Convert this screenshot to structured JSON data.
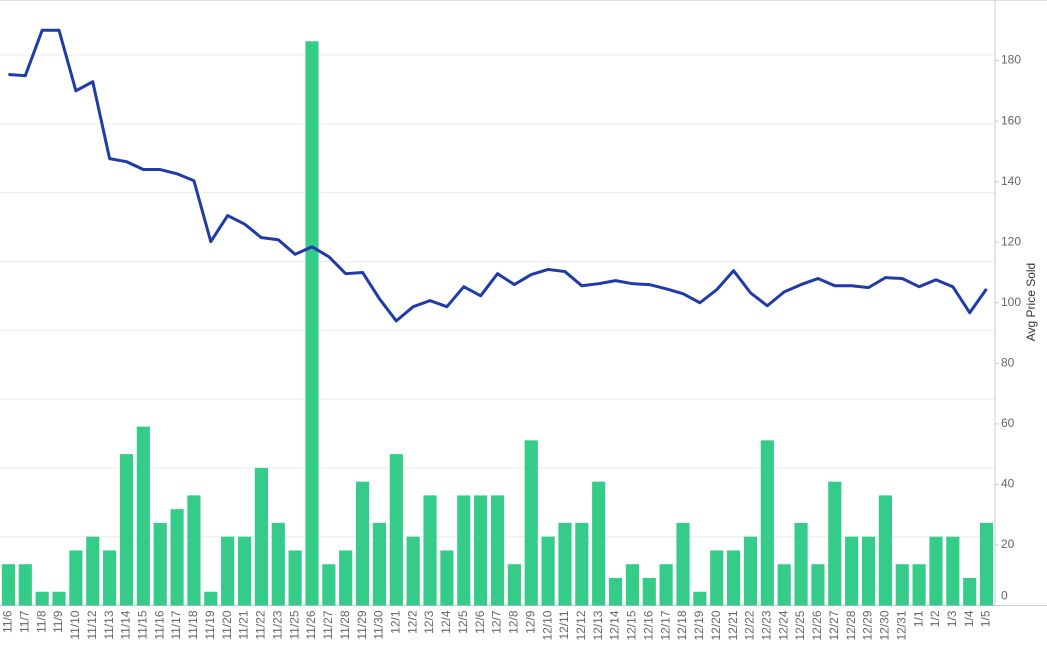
{
  "chart_data": {
    "type": "bar-line",
    "categories": [
      "11/6",
      "11/7",
      "11/8",
      "11/9",
      "11/10",
      "11/12",
      "11/13",
      "11/14",
      "11/15",
      "11/16",
      "11/17",
      "11/18",
      "11/19",
      "11/20",
      "11/21",
      "11/22",
      "11/23",
      "11/25",
      "11/26",
      "11/27",
      "11/28",
      "11/29",
      "11/30",
      "12/1",
      "12/2",
      "12/3",
      "12/4",
      "12/5",
      "12/6",
      "12/7",
      "12/8",
      "12/9",
      "12/10",
      "12/11",
      "12/12",
      "12/13",
      "12/14",
      "12/15",
      "12/16",
      "12/17",
      "12/18",
      "12/19",
      "12/20",
      "12/21",
      "12/22",
      "12/23",
      "12/24",
      "12/25",
      "12/26",
      "12/27",
      "12/28",
      "12/29",
      "12/30",
      "12/31",
      "1/1",
      "1/2",
      "1/3",
      "1/4",
      "1/5"
    ],
    "series": [
      {
        "type": "bar",
        "color": "#34cc88",
        "values": [
          3,
          3,
          1,
          1,
          4,
          5,
          4,
          11,
          13,
          6,
          7,
          8,
          1,
          5,
          5,
          10,
          6,
          4,
          41,
          3,
          4,
          9,
          6,
          11,
          5,
          8,
          4,
          8,
          8,
          8,
          3,
          12,
          5,
          6,
          6,
          9,
          2,
          3,
          2,
          3,
          6,
          1,
          4,
          4,
          5,
          12,
          3,
          6,
          3,
          9,
          5,
          5,
          8,
          3,
          3,
          5,
          5,
          2,
          6
        ]
      },
      {
        "type": "line",
        "axis": "y2",
        "color": "#1f3ba8",
        "values": [
          175.4,
          175,
          190,
          190,
          170,
          173,
          147.6,
          146.6,
          144,
          144,
          142.6,
          140.3,
          120.2,
          128.8,
          126,
          121.5,
          120.8,
          116,
          118.5,
          115.2,
          109.6,
          110,
          101.3,
          94,
          98.7,
          100.7,
          98.7,
          105.3,
          102.3,
          109.6,
          106,
          109.3,
          111,
          110.3,
          105.6,
          106.3,
          107.3,
          106.3,
          106,
          104.6,
          103,
          100,
          104.3,
          110.6,
          103.3,
          99,
          103.6,
          106,
          108,
          105.6,
          105.6,
          105,
          108.3,
          108,
          105.3,
          107.6,
          105.3,
          96.7,
          104.6
        ]
      }
    ],
    "ylim": [
      0,
      44
    ],
    "yticks": [
      0,
      5,
      10,
      15,
      20,
      25,
      30,
      35,
      40
    ],
    "show_ytick_labels": false,
    "grid": true,
    "y2label": "Avg Price Sold",
    "y2lim": [
      0,
      200
    ],
    "y2ticks": [
      0,
      20,
      40,
      60,
      80,
      100,
      120,
      140,
      160,
      180
    ]
  }
}
